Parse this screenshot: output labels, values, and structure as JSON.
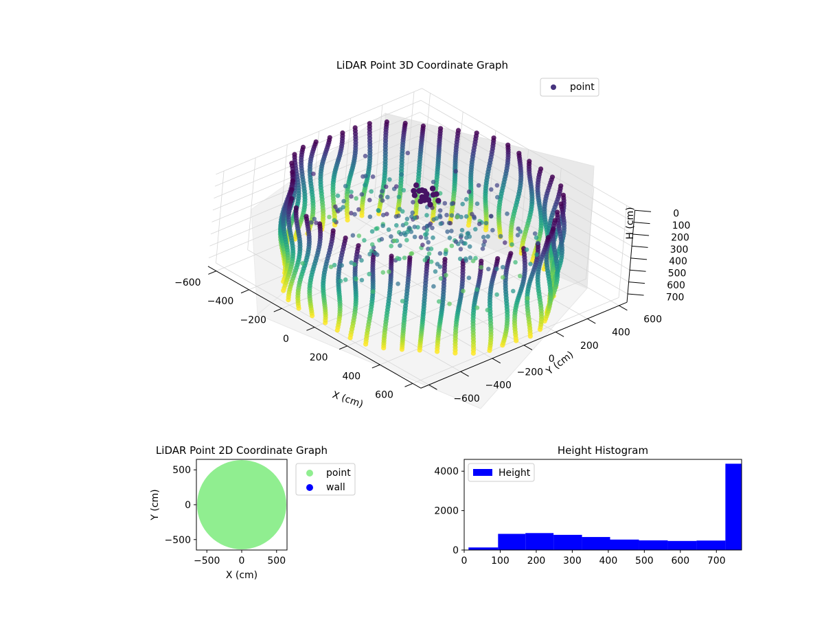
{
  "chart_data": [
    {
      "type": "scatter3d",
      "title": "LiDAR Point 3D Coordinate Graph",
      "xlabel": "X (cm)",
      "ylabel": "Y (cm)",
      "zlabel": "H (cm)",
      "xlim": [
        -650,
        650
      ],
      "ylim": [
        -650,
        650
      ],
      "zlim": [
        770,
        0
      ],
      "x_ticks": [
        "−600",
        "−400",
        "−200",
        "0",
        "200",
        "400",
        "600"
      ],
      "y_ticks": [
        "−600",
        "−400",
        "−200",
        "0",
        "200",
        "400",
        "600"
      ],
      "z_ticks": [
        "0",
        "100",
        "200",
        "300",
        "400",
        "500",
        "600",
        "700"
      ],
      "z_inverted": true,
      "grid": true,
      "colormap": "viridis",
      "legend": {
        "placement": "upper-right",
        "entries": [
          {
            "name": "point",
            "color": "#46337e"
          }
        ]
      },
      "series": [
        {
          "name": "point",
          "shape": "cylinder",
          "radius": 600,
          "height_range": [
            0,
            770
          ],
          "column_count": 48
        }
      ]
    },
    {
      "type": "scatter",
      "title": "LiDAR Point 2D Coordinate Graph",
      "xlabel": "X (cm)",
      "ylabel": "Y (cm)",
      "xlim": [
        -650,
        650
      ],
      "ylim": [
        -650,
        650
      ],
      "x_ticks": [
        "−500",
        "0",
        "500"
      ],
      "y_ticks": [
        "−500",
        "0",
        "500"
      ],
      "legend": {
        "placement": "outside-right",
        "entries": [
          {
            "name": "point",
            "color": "#90ee90"
          },
          {
            "name": "wall",
            "color": "#0000ff"
          }
        ]
      },
      "series": [
        {
          "name": "point",
          "shape": "disc",
          "radius": 640,
          "color": "#90ee90"
        }
      ]
    },
    {
      "type": "histogram",
      "title": "Height Histogram",
      "xlim": [
        0,
        770
      ],
      "ylim": [
        0,
        4600
      ],
      "x_ticks": [
        "0",
        "100",
        "200",
        "300",
        "400",
        "500",
        "600",
        "700"
      ],
      "y_ticks": [
        "0",
        "2000",
        "4000"
      ],
      "color": "#0000ff",
      "legend": {
        "placement": "upper-left",
        "entries": [
          {
            "name": "Height",
            "color": "#0000ff"
          }
        ]
      },
      "bins": [
        {
          "x0": 12,
          "x1": 94,
          "value": 130
        },
        {
          "x0": 94,
          "x1": 170,
          "value": 820
        },
        {
          "x0": 170,
          "x1": 248,
          "value": 860
        },
        {
          "x0": 248,
          "x1": 327,
          "value": 770
        },
        {
          "x0": 327,
          "x1": 405,
          "value": 660
        },
        {
          "x0": 405,
          "x1": 485,
          "value": 530
        },
        {
          "x0": 485,
          "x1": 565,
          "value": 490
        },
        {
          "x0": 565,
          "x1": 645,
          "value": 460
        },
        {
          "x0": 645,
          "x1": 725,
          "value": 480
        },
        {
          "x0": 725,
          "x1": 770,
          "value": 4380
        }
      ]
    }
  ]
}
